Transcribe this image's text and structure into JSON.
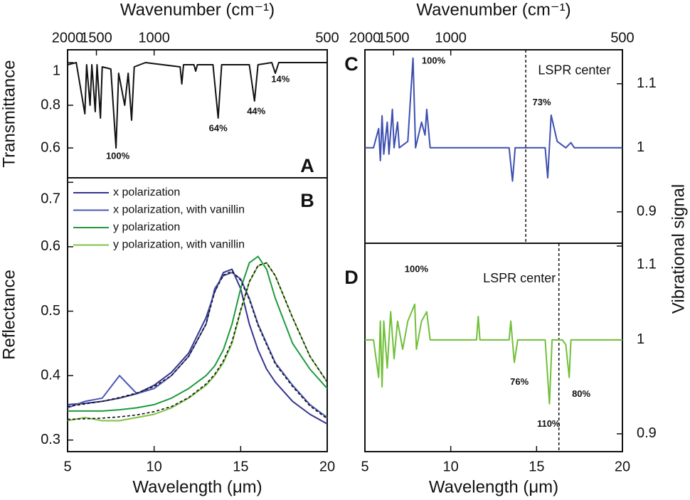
{
  "chart_data": [
    {
      "type": "line",
      "label": "A",
      "x2label": "Wavenumber (cm⁻¹)",
      "ylabel": "Transmittance",
      "x2ticks": [
        2000,
        1500,
        1000,
        500
      ],
      "x2scale": "reciprocal",
      "xlim": [
        5,
        20
      ],
      "ylim": [
        0.46,
        1.06
      ],
      "yticks": [
        0.6,
        0.8,
        1.0
      ],
      "x": [
        5,
        5.5,
        6,
        6.1,
        6.3,
        6.4,
        6.6,
        6.7,
        6.9,
        7.0,
        7.5,
        7.8,
        7.95,
        8.3,
        8.5,
        8.7,
        8.85,
        9.5,
        11.5,
        11.6,
        11.7,
        12.3,
        12.4,
        12.5,
        13.4,
        13.7,
        13.9,
        15.5,
        15.8,
        16,
        16.8,
        17.0,
        17.2,
        20
      ],
      "series": [
        {
          "color": "#111111",
          "values": [
            0.99,
            1.0,
            0.76,
            0.99,
            0.8,
            0.99,
            0.77,
            0.99,
            0.74,
            0.98,
            0.97,
            0.6,
            0.95,
            0.8,
            0.95,
            0.73,
            0.98,
            1.0,
            0.98,
            0.9,
            0.99,
            0.99,
            0.96,
            0.99,
            0.99,
            0.74,
            0.99,
            0.99,
            0.82,
            0.99,
            1.0,
            0.95,
            1.0,
            1.0
          ]
        }
      ],
      "annotations": [
        {
          "text": "100%",
          "x": 7.9,
          "y": 0.56
        },
        {
          "text": "64%",
          "x": 13.7,
          "y": 0.69
        },
        {
          "text": "44%",
          "x": 15.9,
          "y": 0.77
        },
        {
          "text": "14%",
          "x": 17.3,
          "y": 0.92
        }
      ]
    },
    {
      "type": "line",
      "label": "B",
      "xlabel": "Wavelength (μm)",
      "ylabel": "Reflectance",
      "xlim": [
        5,
        20
      ],
      "xticks": [
        5,
        10,
        15,
        20
      ],
      "ylim": [
        0.282,
        0.707
      ],
      "yticks": [
        0.3,
        0.4,
        0.5,
        0.6,
        0.7
      ],
      "legend": "upper left",
      "x": [
        5,
        6,
        7,
        8,
        9,
        10,
        11,
        12,
        13,
        13.5,
        14,
        14.5,
        15,
        15.5,
        16,
        16.5,
        17,
        18,
        19,
        20
      ],
      "series": [
        {
          "name": "x polarization",
          "color": "#34348f",
          "values": [
            0.355,
            0.357,
            0.36,
            0.365,
            0.372,
            0.385,
            0.405,
            0.435,
            0.49,
            0.53,
            0.56,
            0.565,
            0.535,
            0.48,
            0.44,
            0.41,
            0.39,
            0.36,
            0.34,
            0.325
          ]
        },
        {
          "name": "x polarization, with vanillin",
          "color": "#4a56b4",
          "values": [
            0.35,
            0.36,
            0.365,
            0.4,
            0.372,
            0.38,
            0.4,
            0.43,
            0.48,
            0.535,
            0.555,
            0.56,
            0.55,
            0.52,
            0.48,
            0.45,
            0.42,
            0.385,
            0.355,
            0.335
          ]
        },
        {
          "name": "y polarization",
          "color": "#1e9a3c",
          "values": [
            0.345,
            0.345,
            0.345,
            0.347,
            0.35,
            0.355,
            0.365,
            0.38,
            0.4,
            0.415,
            0.44,
            0.48,
            0.535,
            0.575,
            0.585,
            0.565,
            0.52,
            0.45,
            0.41,
            0.38
          ]
        },
        {
          "name": "y polarization, with vanillin",
          "color": "#7cc243",
          "values": [
            0.33,
            0.335,
            0.33,
            0.33,
            0.335,
            0.34,
            0.35,
            0.365,
            0.385,
            0.4,
            0.42,
            0.45,
            0.5,
            0.545,
            0.57,
            0.575,
            0.555,
            0.49,
            0.43,
            0.39
          ]
        },
        {
          "color": "#111111",
          "dash": true,
          "values": [
            0.352,
            0.356,
            0.36,
            0.366,
            0.373,
            0.383,
            0.4,
            0.43,
            0.48,
            0.53,
            0.556,
            0.562,
            0.548,
            0.518,
            0.478,
            0.448,
            0.418,
            0.383,
            0.353,
            0.333
          ]
        },
        {
          "color": "#111111",
          "dash": true,
          "values": [
            0.332,
            0.333,
            0.334,
            0.336,
            0.339,
            0.344,
            0.352,
            0.366,
            0.387,
            0.402,
            0.423,
            0.453,
            0.502,
            0.546,
            0.571,
            0.575,
            0.555,
            0.49,
            0.43,
            0.39
          ]
        }
      ]
    },
    {
      "type": "line",
      "label": "C",
      "x2label": "Wavenumber (cm⁻¹)",
      "ylabel": "Vibrational signal",
      "x2ticks": [
        2000,
        1500,
        1000,
        500
      ],
      "x2scale": "reciprocal",
      "xlim": [
        5,
        20
      ],
      "ylim": [
        0.851,
        1.153
      ],
      "yticks": [
        0.9,
        1.0,
        1.1
      ],
      "yaxis": "right",
      "vline": 14.37,
      "x": [
        5,
        5.5,
        5.8,
        5.9,
        6.0,
        6.1,
        6.3,
        6.4,
        6.6,
        6.7,
        6.9,
        7.0,
        7.5,
        7.8,
        7.95,
        8.3,
        8.5,
        8.6,
        8.8,
        10,
        12,
        13.4,
        13.6,
        13.75,
        14.5,
        15.5,
        15.65,
        15.85,
        16.2,
        16.7,
        17.0,
        17.2,
        18,
        20
      ],
      "series": [
        {
          "color": "#3d4fb0",
          "values": [
            1.0,
            1.0,
            1.03,
            0.98,
            1.05,
            0.99,
            1.04,
            0.99,
            1.06,
            1.0,
            1.04,
            1.0,
            1.01,
            1.14,
            1.0,
            1.04,
            1.02,
            1.06,
            1.0,
            1.0,
            1.0,
            1.0,
            0.948,
            1.0,
            1.0,
            1.0,
            0.953,
            1.051,
            1.01,
            1.0,
            1.008,
            1.0,
            1.0,
            1.0
          ]
        }
      ],
      "annotations": [
        {
          "text": "100%",
          "x": 9.0,
          "y": 1.135
        },
        {
          "text": "73%",
          "x": 15.3,
          "y": 1.07
        },
        {
          "text": "LSPR center",
          "x": 17.2,
          "y": 1.12
        }
      ]
    },
    {
      "type": "line",
      "label": "D",
      "xlabel": "Wavelength (μm)",
      "xlim": [
        5,
        20
      ],
      "xticks": [
        5,
        10,
        15,
        20
      ],
      "ylim": [
        0.881,
        1.103
      ],
      "yticks": [
        0.9,
        1.0,
        1.1
      ],
      "yaxis": "right",
      "vline": 16.3,
      "x": [
        5,
        5.5,
        5.8,
        5.9,
        6.0,
        6.1,
        6.3,
        6.5,
        6.7,
        6.9,
        7.2,
        7.5,
        7.9,
        8.0,
        8.3,
        8.6,
        8.8,
        10,
        11.5,
        11.6,
        11.7,
        13.4,
        13.5,
        13.7,
        13.9,
        15.5,
        15.75,
        15.9,
        16.5,
        16.7,
        16.9,
        17.0,
        18,
        20
      ],
      "series": [
        {
          "color": "#72bf3a",
          "values": [
            1.0,
            1.0,
            0.96,
            1.02,
            0.95,
            1.02,
            0.97,
            1.03,
            0.98,
            1.02,
            0.99,
            1.02,
            1.038,
            0.99,
            1.02,
            1.03,
            1.0,
            1.0,
            1.0,
            1.025,
            1.0,
            1.0,
            1.02,
            0.976,
            1.0,
            1.0,
            0.932,
            1.0,
            1.0,
            0.995,
            0.96,
            1.0,
            1.0,
            1.0
          ]
        }
      ],
      "annotations": [
        {
          "text": "100%",
          "x": 8.0,
          "y": 1.075
        },
        {
          "text": "76%",
          "x": 14.0,
          "y": 0.955
        },
        {
          "text": "110%",
          "x": 15.7,
          "y": 0.91
        },
        {
          "text": "80%",
          "x": 17.6,
          "y": 0.942
        },
        {
          "text": "LSPR center",
          "x": 14.0,
          "y": 1.065
        }
      ]
    }
  ]
}
